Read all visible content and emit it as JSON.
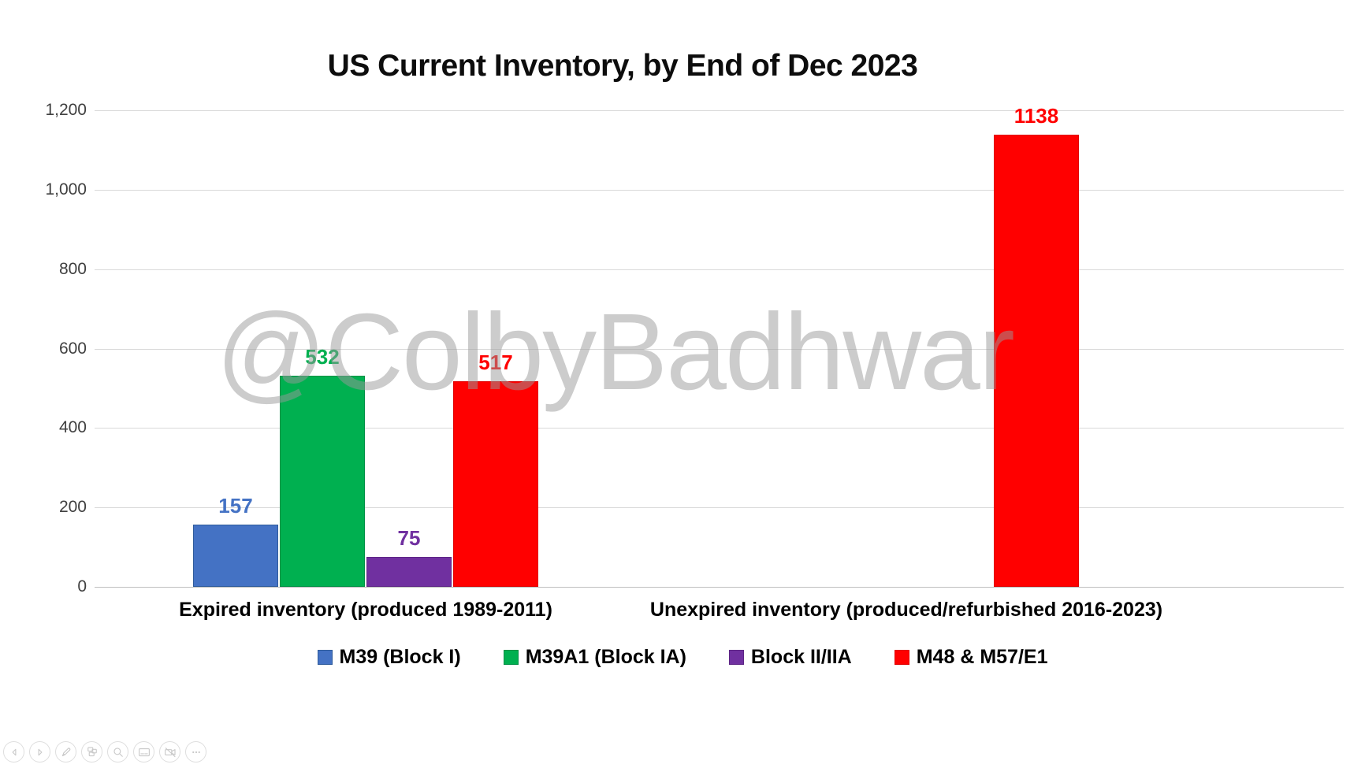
{
  "slide": {
    "title": "US Current Inventory, by End of Dec 2023",
    "watermark": "@ColbyBadhwar"
  },
  "chart_data": {
    "type": "bar",
    "title": "US Current Inventory, by End of Dec 2023",
    "categories": [
      "Expired inventory (produced 1989-2011)",
      "Unexpired inventory (produced/refurbished 2016-2023)"
    ],
    "series": [
      {
        "name": "M39 (Block I)",
        "color": "#4472c4",
        "border_color": "#2e5b9b",
        "values": [
          157,
          null
        ]
      },
      {
        "name": "M39A1 (Block IA)",
        "color": "#00b050",
        "border_color": "#009045",
        "values": [
          532,
          null
        ]
      },
      {
        "name": "Block II/IIA",
        "color": "#7030a0",
        "border_color": "#5d2585",
        "values": [
          75,
          null
        ]
      },
      {
        "name": "M48 & M57/E1",
        "color": "#ff0000",
        "border_color": "#e00000",
        "values": [
          517,
          1138
        ]
      }
    ],
    "data_labels": [
      [
        "157",
        "532",
        "75",
        "517"
      ],
      [
        null,
        null,
        null,
        "1138"
      ]
    ],
    "ylim": [
      0,
      1200
    ],
    "ytick_step": 200,
    "ytick_labels": [
      "0",
      "200",
      "400",
      "600",
      "800",
      "1,000",
      "1,200"
    ],
    "grid": true,
    "gridline_color": "#d9d9d9",
    "legend_position": "bottom",
    "xlabel": "",
    "ylabel": ""
  },
  "toolbar": {
    "items": [
      {
        "name": "previous-slide",
        "icon": "chevron-left-icon"
      },
      {
        "name": "next-slide",
        "icon": "chevron-right-icon"
      },
      {
        "name": "pen-tools",
        "icon": "pen-icon"
      },
      {
        "name": "see-all-slides",
        "icon": "slides-grid-icon"
      },
      {
        "name": "zoom-to-slide",
        "icon": "magnifier-icon"
      },
      {
        "name": "toggle-subtitles",
        "icon": "subtitles-icon"
      },
      {
        "name": "toggle-camera",
        "icon": "camera-off-icon"
      },
      {
        "name": "more-options",
        "icon": "ellipsis-icon"
      }
    ]
  }
}
